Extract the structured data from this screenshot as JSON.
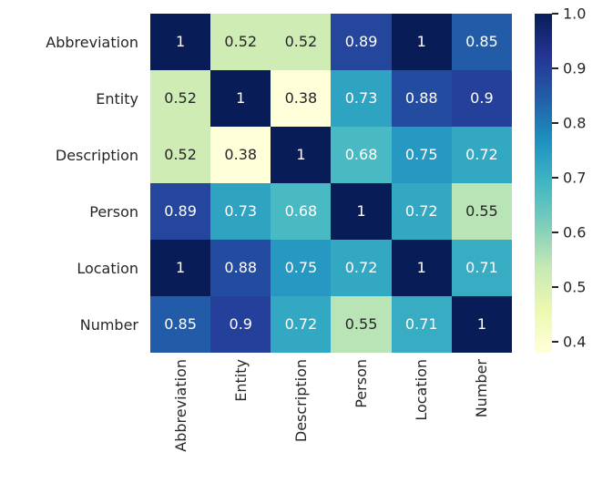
{
  "chart_data": {
    "type": "heatmap",
    "title": "",
    "xlabel": "",
    "ylabel": "",
    "categories": [
      "Abbreviation",
      "Entity",
      "Description",
      "Person",
      "Location",
      "Number"
    ],
    "matrix": [
      [
        1,
        0.52,
        0.52,
        0.89,
        1,
        0.85
      ],
      [
        0.52,
        1,
        0.38,
        0.73,
        0.88,
        0.9
      ],
      [
        0.52,
        0.38,
        1,
        0.68,
        0.75,
        0.72
      ],
      [
        0.89,
        0.73,
        0.68,
        1,
        0.72,
        0.55
      ],
      [
        1,
        0.88,
        0.75,
        0.72,
        1,
        0.71
      ],
      [
        0.85,
        0.9,
        0.72,
        0.55,
        0.71,
        1
      ]
    ],
    "vmin": 0.38,
    "vmax": 1.0,
    "colormap_name": "YlGnBu",
    "colormap_stops": [
      "#ffffd9",
      "#edf8b1",
      "#c7e9b4",
      "#7fcdbb",
      "#41b6c4",
      "#1d91c0",
      "#225ea8",
      "#253494",
      "#081d58"
    ],
    "colorbar": {
      "position": "right",
      "tick_labels": [
        "1.0",
        "0.9",
        "0.8",
        "0.7",
        "0.6",
        "0.5",
        "0.4"
      ],
      "tick_values": [
        1.0,
        0.9,
        0.8,
        0.7,
        0.6,
        0.5,
        0.4
      ]
    },
    "annotation_color_on_dark": "#ffffff",
    "annotation_color_on_light": "#262626",
    "grid": false,
    "legend_position": "right-colorbar"
  }
}
